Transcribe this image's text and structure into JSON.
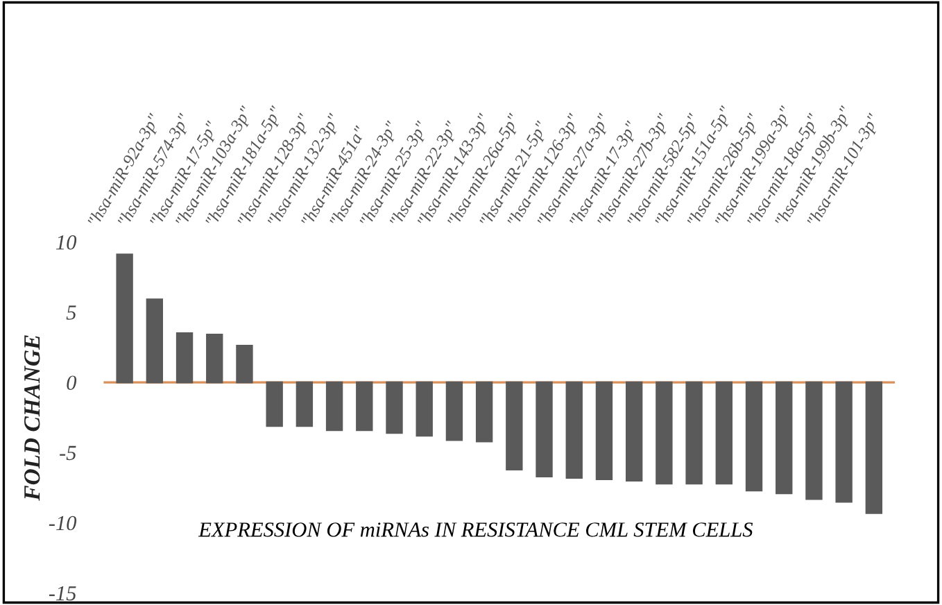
{
  "chart_data": {
    "type": "bar",
    "ylabel": "FOLD CHANGE",
    "categories": [
      "\"hsa-miR-92a-3p\"",
      "\"hsa-miR-574-3p\"",
      "\"hsa-miR-17-5p\"",
      "\"hsa-miR-103a-3p\"",
      "\"hsa-miR-181a-5p\"",
      "\"hsa-miR-128-3p\"",
      "\"hsa-miR-132-3p\"",
      "\"hsa-miR-451a\"",
      "\"hsa-miR-24-3p\"",
      "\"hsa-miR-25-3p\"",
      "\"hsa-miR-22-3p\"",
      "\"hsa-miR-143-3p\"",
      "\"hsa-miR-26a-5p\"",
      "\"hsa-miR-21-5p\"",
      "\"hsa-miR-126-3p\"",
      "\"hsa-miR-27a-3p\"",
      "\"hsa-miR-17-3p\"",
      "\"hsa-miR-27b-3p\"",
      "\"hsa-miR-582-5p\"",
      "\"hsa-miR-151a-5p\"",
      "\"hsa-miR-26b-5p\"",
      "\"hsa-miR-199a-3p\"",
      "\"hsa-miR-18a-5p\"",
      "\"hsa-miR-199b-3p\"",
      "\"hsa-miR-101-3p\"",
      null
    ],
    "values": [
      9.1,
      5.9,
      3.5,
      3.4,
      2.6,
      -3.1,
      -3.1,
      -3.4,
      -3.4,
      -3.6,
      -3.8,
      -4.1,
      -4.2,
      -6.2,
      -6.7,
      -6.8,
      -6.9,
      -7.0,
      -7.2,
      -7.2,
      -7.2,
      -7.7,
      -7.9,
      -8.3,
      -8.5,
      -9.3
    ],
    "color": "#5a5a5a",
    "ylim": [
      -15,
      10
    ],
    "yticks": [
      {
        "value": 10,
        "label": "10"
      },
      {
        "value": 5,
        "label": "5"
      },
      {
        "value": 0,
        "label": "0"
      },
      {
        "value": -5,
        "label": "-5"
      },
      {
        "value": -10,
        "label": "-10"
      },
      {
        "value": -15,
        "label": "-15"
      }
    ],
    "ref_lines": [
      {
        "axis": "y",
        "value": 0,
        "color": "#d9905a"
      }
    ],
    "annotations": [
      "EXPRESSION OF miRNAs IN RESISTANCE CML STEM CELLS"
    ],
    "grid": false,
    "legend": false
  }
}
